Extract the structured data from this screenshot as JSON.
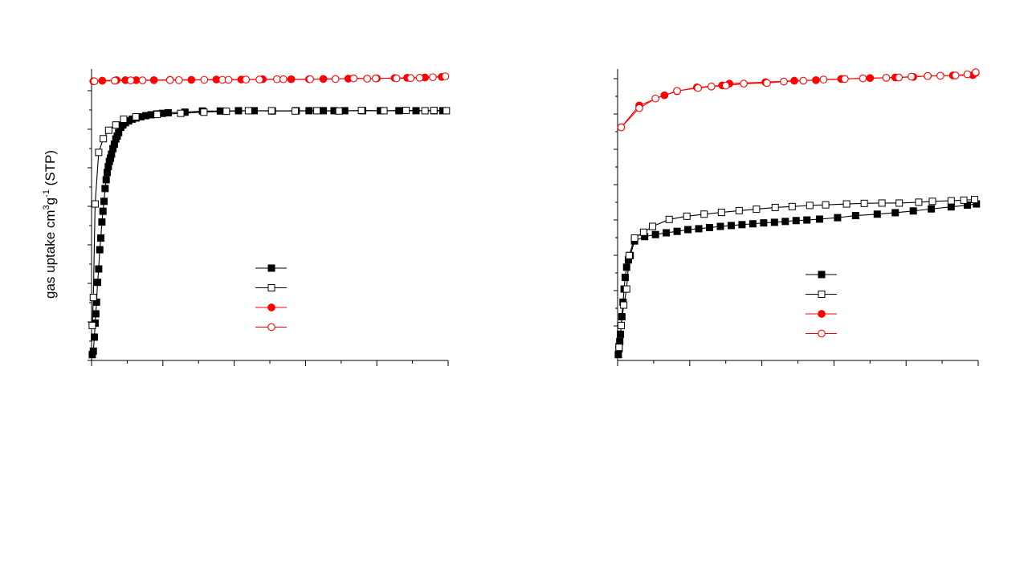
{
  "figure": {
    "ylabel_main": "gas uptake cm",
    "ylabel_sup1": "3",
    "ylabel_mid": "g",
    "ylabel_sup2": "-1",
    "ylabel_tail": " (STP)"
  },
  "chart_data": [
    {
      "type": "line",
      "xlim": [
        0,
        1
      ],
      "ylim": [
        0,
        1
      ],
      "grid": false,
      "legend_placement": "center-right",
      "series": [
        {
          "marker": "square",
          "filled": true,
          "color": "#000000",
          "x": [
            0.002,
            0.005,
            0.008,
            0.01,
            0.012,
            0.014,
            0.017,
            0.02,
            0.023,
            0.026,
            0.029,
            0.032,
            0.035,
            0.038,
            0.041,
            0.044,
            0.047,
            0.05,
            0.053,
            0.056,
            0.06,
            0.064,
            0.068,
            0.072,
            0.076,
            0.082,
            0.088,
            0.095,
            0.104,
            0.114,
            0.125,
            0.138,
            0.152,
            0.167,
            0.183,
            0.199,
            0.215,
            0.262,
            0.311,
            0.361,
            0.412,
            0.456,
            0.507,
            0.574,
            0.61,
            0.65,
            0.68,
            0.71,
            0.76,
            0.81,
            0.862,
            0.91,
            0.96,
            0.985
          ],
          "y": [
            0.02,
            0.032,
            0.08,
            0.128,
            0.16,
            0.2,
            0.268,
            0.314,
            0.38,
            0.42,
            0.475,
            0.512,
            0.546,
            0.59,
            0.62,
            0.645,
            0.665,
            0.683,
            0.694,
            0.708,
            0.727,
            0.742,
            0.76,
            0.77,
            0.782,
            0.8,
            0.808,
            0.816,
            0.822,
            0.828,
            0.832,
            0.836,
            0.84,
            0.843,
            0.846,
            0.848,
            0.85,
            0.852,
            0.856,
            0.856,
            0.857,
            0.857,
            0.856,
            0.857,
            0.857,
            0.857,
            0.857,
            0.857,
            0.857,
            0.857,
            0.857,
            0.857,
            0.857,
            0.857
          ]
        },
        {
          "marker": "square",
          "filled": false,
          "color": "#000000",
          "x": [
            0.002,
            0.005,
            0.01,
            0.02,
            0.033,
            0.048,
            0.068,
            0.09,
            0.124,
            0.184,
            0.25,
            0.315,
            0.378,
            0.44,
            0.505,
            0.571,
            0.632,
            0.694,
            0.757,
            0.82,
            0.882,
            0.935,
            0.96,
            0.995
          ],
          "y": [
            0.12,
            0.216,
            0.537,
            0.714,
            0.761,
            0.79,
            0.808,
            0.828,
            0.836,
            0.844,
            0.848,
            0.852,
            0.855,
            0.857,
            0.857,
            0.856,
            0.857,
            0.856,
            0.858,
            0.857,
            0.858,
            0.857,
            0.858,
            0.857
          ],
          "name": ""
        },
        {
          "marker": "circle",
          "filled": true,
          "color": "#ff0000",
          "x": [
            0.005,
            0.03,
            0.07,
            0.095,
            0.125,
            0.175,
            0.22,
            0.28,
            0.35,
            0.42,
            0.48,
            0.56,
            0.61,
            0.65,
            0.72,
            0.8,
            0.85,
            0.885,
            0.935,
            0.982
          ],
          "y": [
            0.958,
            0.96,
            0.962,
            0.962,
            0.962,
            0.962,
            0.963,
            0.963,
            0.964,
            0.964,
            0.965,
            0.965,
            0.965,
            0.966,
            0.967,
            0.968,
            0.969,
            0.97,
            0.971,
            0.973
          ]
        },
        {
          "marker": "circle",
          "filled": false,
          "color": "#ff0000",
          "x": [
            0.008,
            0.065,
            0.11,
            0.143,
            0.22,
            0.245,
            0.316,
            0.367,
            0.384,
            0.433,
            0.471,
            0.52,
            0.538,
            0.613,
            0.684,
            0.735,
            0.773,
            0.797,
            0.855,
            0.895,
            0.92,
            0.957,
            0.992
          ],
          "y": [
            0.958,
            0.96,
            0.961,
            0.961,
            0.962,
            0.962,
            0.963,
            0.963,
            0.963,
            0.964,
            0.964,
            0.965,
            0.965,
            0.965,
            0.966,
            0.968,
            0.967,
            0.968,
            0.968,
            0.969,
            0.97,
            0.972,
            0.975
          ]
        }
      ]
    },
    {
      "type": "line",
      "xlim": [
        0,
        1
      ],
      "ylim": [
        0,
        1
      ],
      "grid": false,
      "legend_placement": "center-right",
      "series": [
        {
          "marker": "square",
          "filled": true,
          "color": "#000000",
          "x": [
            0.002,
            0.004,
            0.006,
            0.008,
            0.01,
            0.012,
            0.015,
            0.018,
            0.021,
            0.025,
            0.03,
            0.035,
            0.047,
            0.075,
            0.105,
            0.135,
            0.165,
            0.195,
            0.225,
            0.255,
            0.285,
            0.315,
            0.345,
            0.375,
            0.405,
            0.435,
            0.465,
            0.495,
            0.525,
            0.56,
            0.61,
            0.66,
            0.72,
            0.77,
            0.82,
            0.87,
            0.925,
            0.97,
            0.995
          ],
          "y": [
            0.02,
            0.04,
            0.065,
            0.09,
            0.12,
            0.15,
            0.2,
            0.245,
            0.285,
            0.32,
            0.345,
            0.36,
            0.41,
            0.425,
            0.432,
            0.438,
            0.443,
            0.449,
            0.452,
            0.456,
            0.46,
            0.463,
            0.466,
            0.469,
            0.472,
            0.474,
            0.477,
            0.48,
            0.482,
            0.485,
            0.49,
            0.497,
            0.502,
            0.507,
            0.513,
            0.52,
            0.527,
            0.533,
            0.537
          ]
        },
        {
          "marker": "square",
          "filled": false,
          "color": "#000000",
          "x": [
            0.004,
            0.01,
            0.017,
            0.025,
            0.032,
            0.047,
            0.072,
            0.097,
            0.143,
            0.192,
            0.24,
            0.288,
            0.337,
            0.385,
            0.437,
            0.484,
            0.533,
            0.577,
            0.635,
            0.684,
            0.733,
            0.781,
            0.835,
            0.873,
            0.925,
            0.96,
            0.99
          ],
          "y": [
            0.045,
            0.12,
            0.19,
            0.245,
            0.36,
            0.42,
            0.44,
            0.46,
            0.484,
            0.495,
            0.502,
            0.508,
            0.514,
            0.519,
            0.525,
            0.528,
            0.532,
            0.534,
            0.537,
            0.539,
            0.54,
            0.54,
            0.543,
            0.546,
            0.548,
            0.55,
            0.552
          ]
        },
        {
          "marker": "circle",
          "filled": true,
          "color": "#ff0000",
          "x": [
            0.01,
            0.06,
            0.13,
            0.165,
            0.22,
            0.29,
            0.31,
            0.41,
            0.49,
            0.55,
            0.62,
            0.7,
            0.77,
            0.82,
            0.86,
            0.93,
            0.985,
            0.993
          ],
          "y": [
            0.8,
            0.875,
            0.91,
            0.924,
            0.937,
            0.944,
            0.95,
            0.955,
            0.96,
            0.962,
            0.966,
            0.969,
            0.971,
            0.973,
            0.976,
            0.978,
            0.979,
            0.987
          ]
        },
        {
          "marker": "circle",
          "filled": false,
          "color": "#ff0000",
          "x": [
            0.01,
            0.06,
            0.105,
            0.165,
            0.223,
            0.26,
            0.3,
            0.35,
            0.414,
            0.461,
            0.515,
            0.571,
            0.63,
            0.68,
            0.745,
            0.78,
            0.815,
            0.86,
            0.895,
            0.937,
            0.97,
            0.993
          ],
          "y": [
            0.8,
            0.866,
            0.899,
            0.925,
            0.935,
            0.94,
            0.943,
            0.95,
            0.952,
            0.957,
            0.96,
            0.964,
            0.966,
            0.968,
            0.97,
            0.971,
            0.974,
            0.976,
            0.977,
            0.978,
            0.982,
            0.989
          ]
        }
      ]
    }
  ]
}
